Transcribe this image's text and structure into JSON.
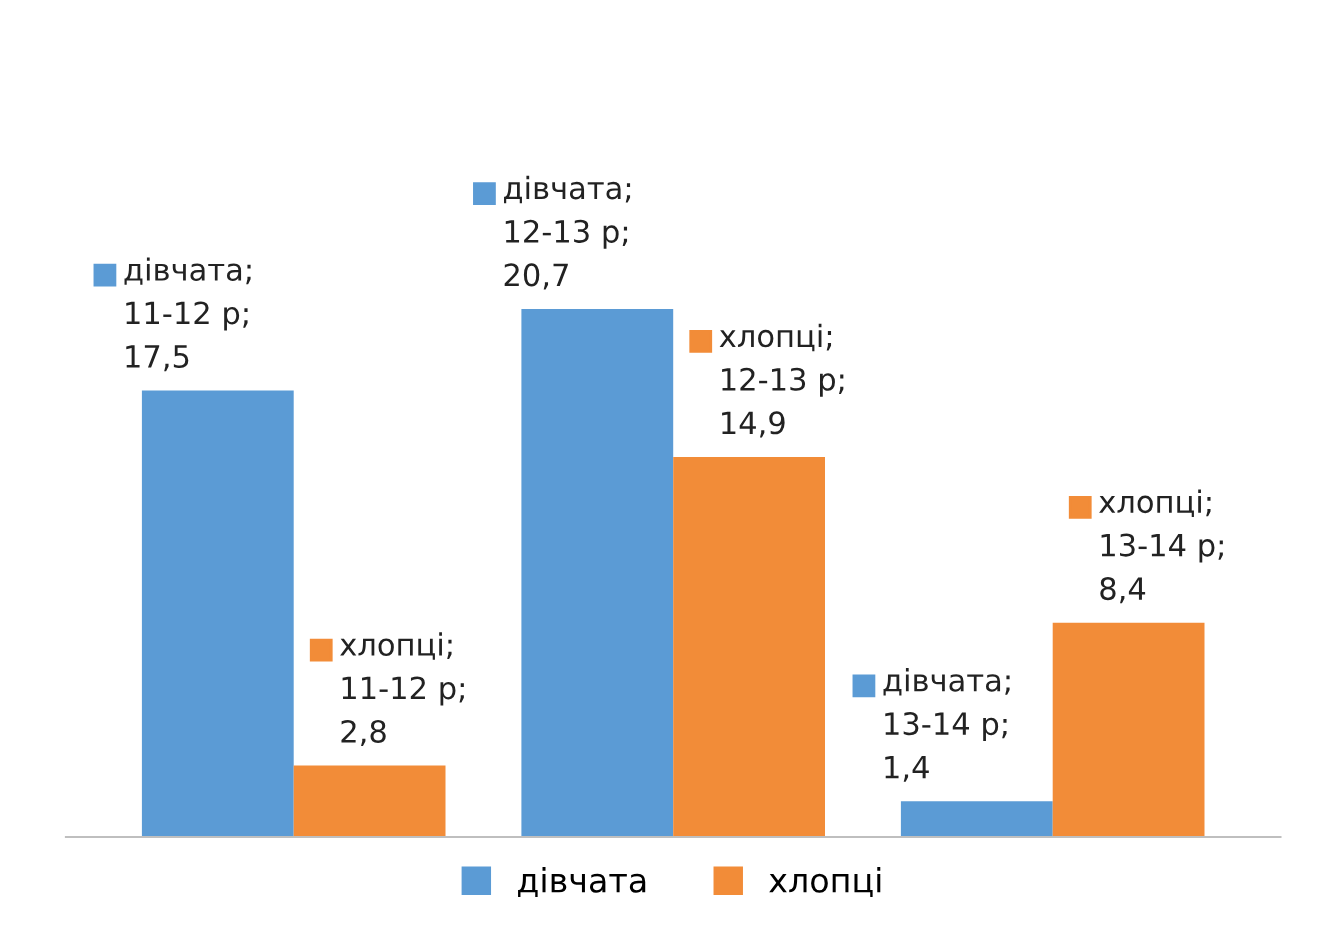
{
  "chart_data": {
    "type": "bar",
    "categories": [
      null,
      null,
      null
    ],
    "series": [
      {
        "name": "дівчата",
        "color": "#5b9bd5",
        "values": [
          17.5,
          20.7,
          1.4
        ],
        "value_labels": [
          "дівчата;\n11-12 р;\n17,5",
          "дівчата;\n12-13 р;\n20,7",
          "дівчата;\n13-14 р;\n1,4"
        ]
      },
      {
        "name": "хлопці",
        "color": "#f28c38",
        "values": [
          2.8,
          14.9,
          8.4
        ],
        "value_labels": [
          "хлопці;\n11-12 р;\n2,8",
          "хлопці;\n12-13 р;\n14,9",
          "хлопці;\n13-14 р;\n8,4"
        ]
      }
    ],
    "legend": "bottom",
    "grid": false
  }
}
